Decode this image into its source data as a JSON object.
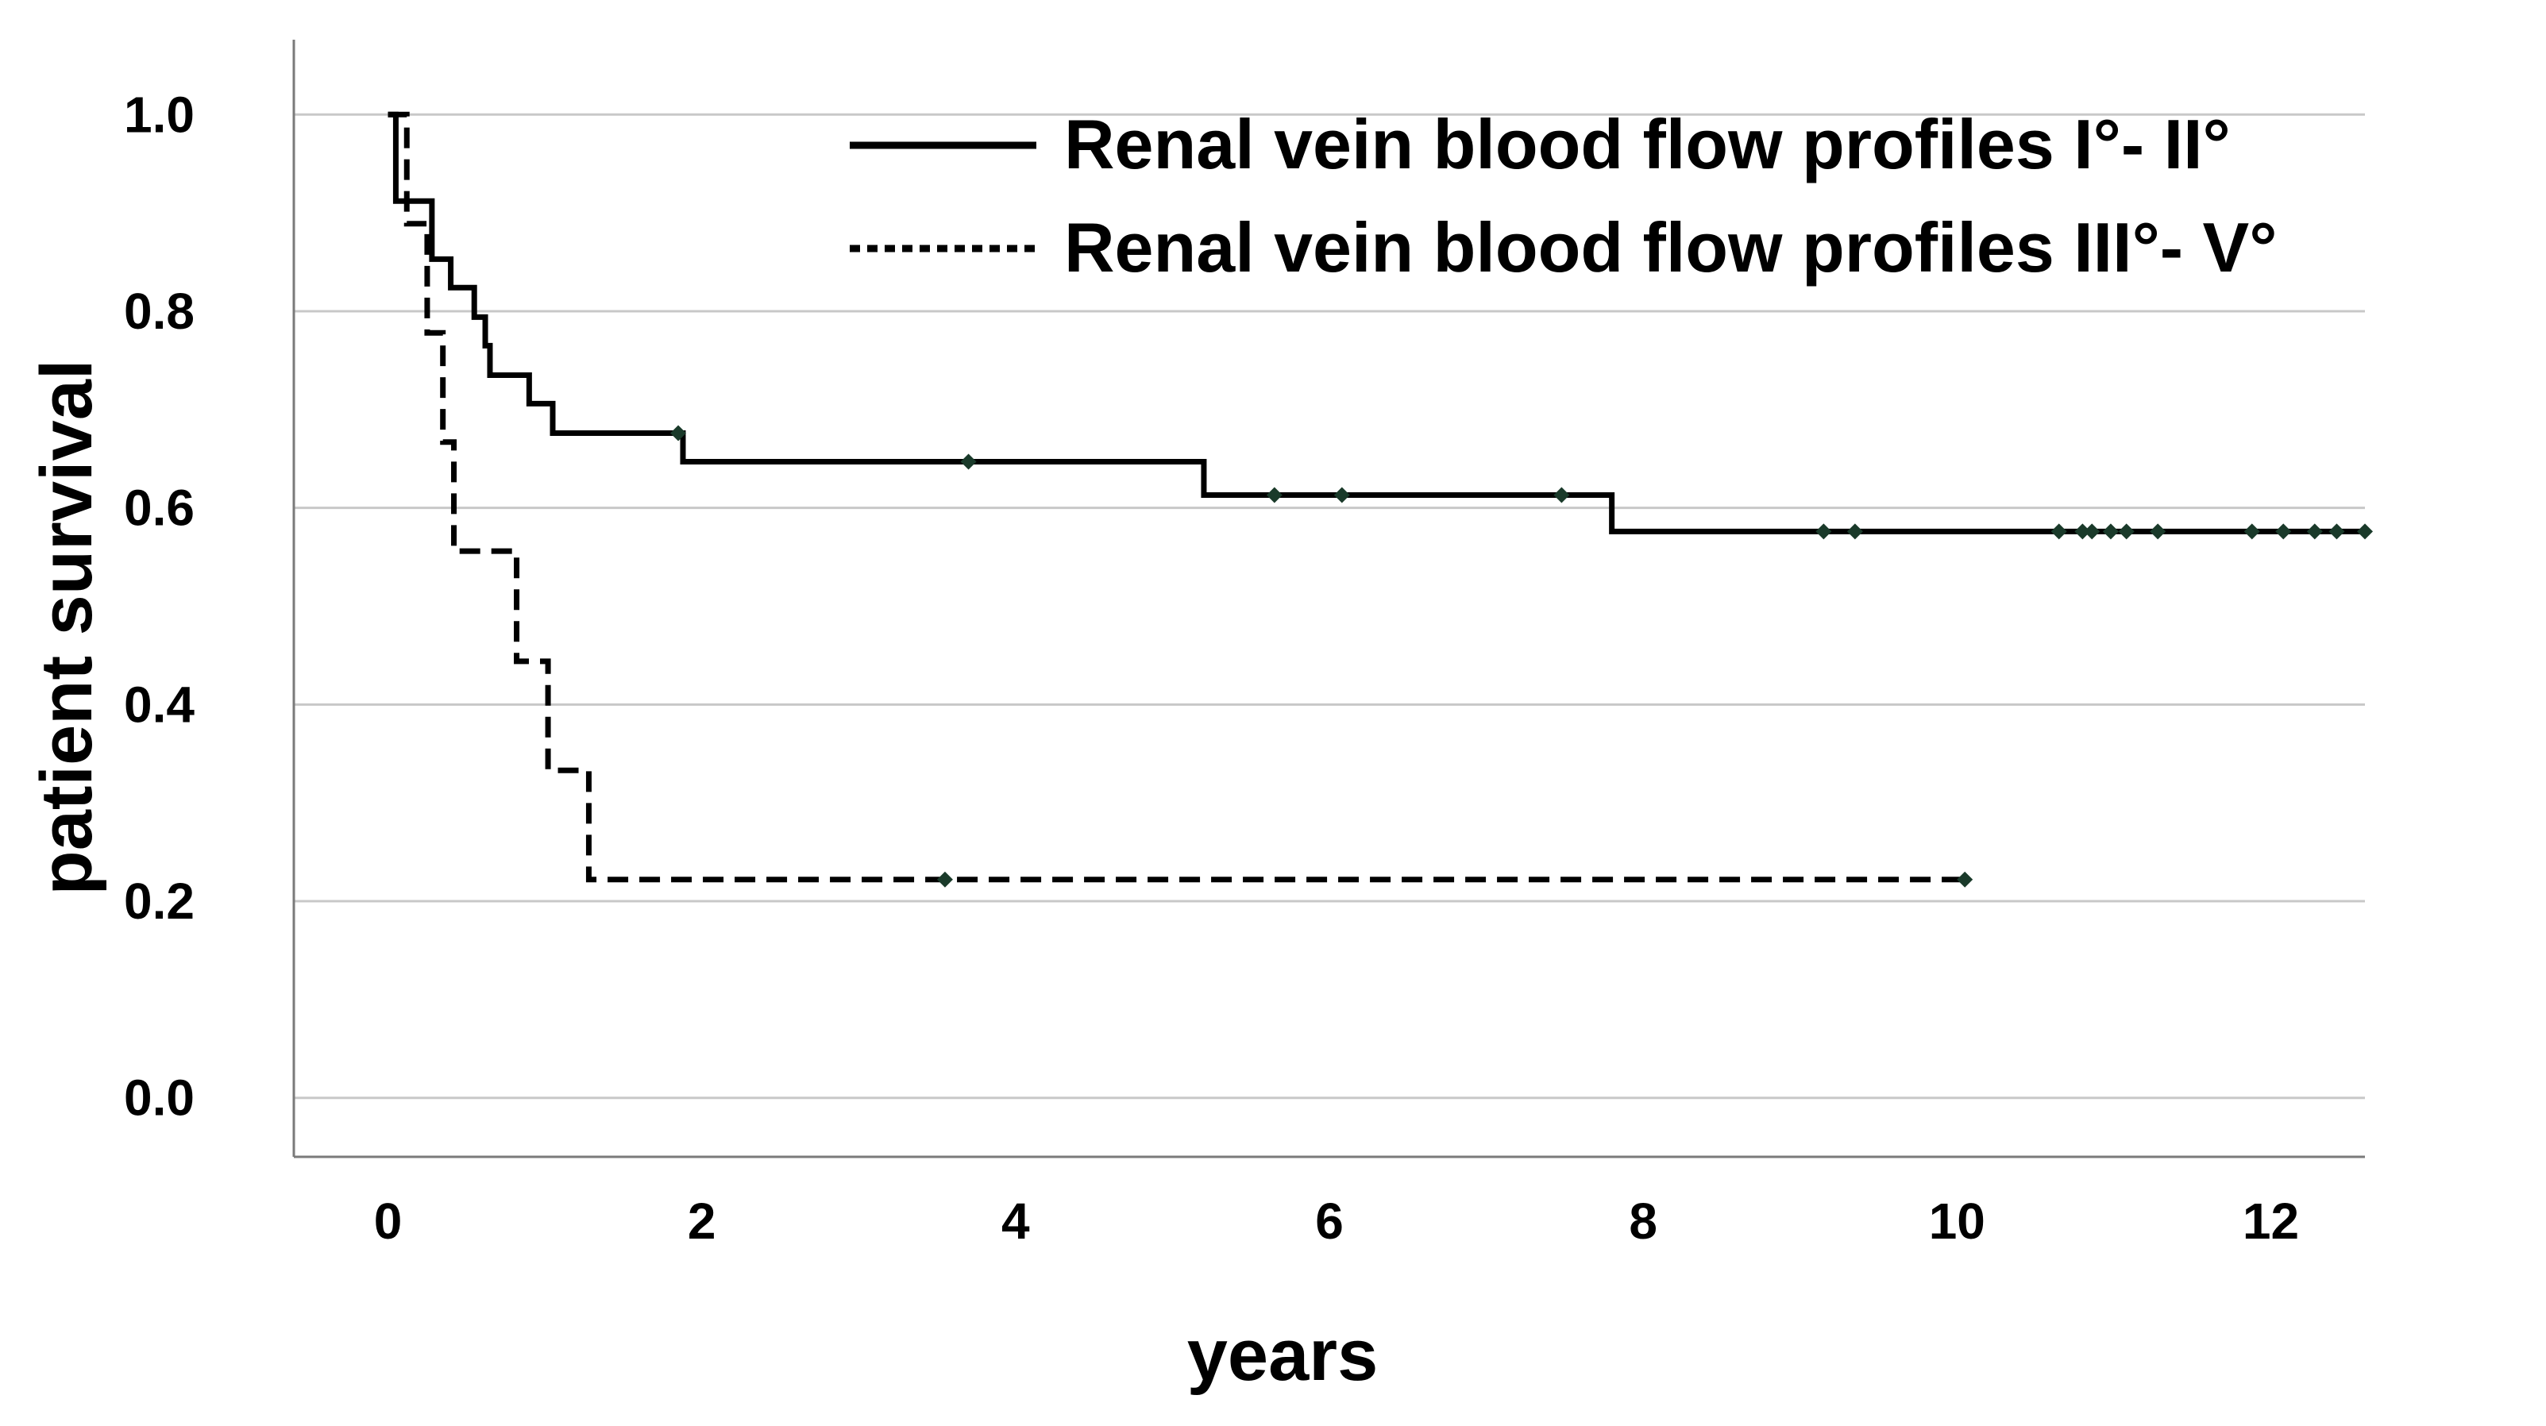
{
  "chart_data": {
    "type": "line",
    "step": true,
    "xlabel": "years",
    "ylabel": "patient survival",
    "xlim": [
      -0.6,
      12.6
    ],
    "ylim": [
      -0.06,
      1.06
    ],
    "xticks": [
      0,
      2,
      4,
      6,
      8,
      10,
      12
    ],
    "xtick_labels": [
      "0",
      "2",
      "4",
      "6",
      "8",
      "10",
      "12"
    ],
    "yticks": [
      0.0,
      0.2,
      0.4,
      0.6,
      0.8,
      1.0
    ],
    "ytick_labels": [
      "0.0",
      "0.2",
      "0.4",
      "0.6",
      "0.8",
      "1.0"
    ],
    "grid": "horizontal",
    "legend_position": "top-right",
    "series": [
      {
        "name": "Renal vein blood flow profiles I°- II°",
        "line_style": "solid",
        "color": "#000000",
        "steps": [
          {
            "x": 0.0,
            "y": 1.0
          },
          {
            "x": 0.05,
            "y": 0.912
          },
          {
            "x": 0.28,
            "y": 0.853
          },
          {
            "x": 0.4,
            "y": 0.824
          },
          {
            "x": 0.55,
            "y": 0.794
          },
          {
            "x": 0.62,
            "y": 0.765
          },
          {
            "x": 0.65,
            "y": 0.735
          },
          {
            "x": 0.9,
            "y": 0.706
          },
          {
            "x": 1.05,
            "y": 0.676
          },
          {
            "x": 1.88,
            "y": 0.647
          },
          {
            "x": 5.2,
            "y": 0.613
          },
          {
            "x": 7.8,
            "y": 0.576
          }
        ],
        "end_x": 12.6,
        "censored": [
          {
            "x": 1.85,
            "y": 0.676
          },
          {
            "x": 3.7,
            "y": 0.647
          },
          {
            "x": 5.65,
            "y": 0.613
          },
          {
            "x": 6.08,
            "y": 0.613
          },
          {
            "x": 7.48,
            "y": 0.613
          },
          {
            "x": 9.15,
            "y": 0.576
          },
          {
            "x": 9.35,
            "y": 0.576
          },
          {
            "x": 10.65,
            "y": 0.576
          },
          {
            "x": 10.8,
            "y": 0.576
          },
          {
            "x": 10.86,
            "y": 0.576
          },
          {
            "x": 10.98,
            "y": 0.576
          },
          {
            "x": 11.08,
            "y": 0.576
          },
          {
            "x": 11.28,
            "y": 0.576
          },
          {
            "x": 11.88,
            "y": 0.576
          },
          {
            "x": 12.08,
            "y": 0.576
          },
          {
            "x": 12.28,
            "y": 0.576
          },
          {
            "x": 12.42,
            "y": 0.576
          },
          {
            "x": 12.6,
            "y": 0.576
          }
        ]
      },
      {
        "name": "Renal vein blood flow profiles III°- V°",
        "line_style": "dashed",
        "color": "#000000",
        "steps": [
          {
            "x": 0.0,
            "y": 1.0
          },
          {
            "x": 0.12,
            "y": 0.889
          },
          {
            "x": 0.25,
            "y": 0.778
          },
          {
            "x": 0.35,
            "y": 0.667
          },
          {
            "x": 0.42,
            "y": 0.556
          },
          {
            "x": 0.82,
            "y": 0.444
          },
          {
            "x": 1.02,
            "y": 0.333
          },
          {
            "x": 1.28,
            "y": 0.222
          }
        ],
        "end_x": 10.05,
        "censored": [
          {
            "x": 3.55,
            "y": 0.222
          },
          {
            "x": 10.05,
            "y": 0.222
          }
        ]
      }
    ],
    "censor_color": "#1a3a2a"
  }
}
